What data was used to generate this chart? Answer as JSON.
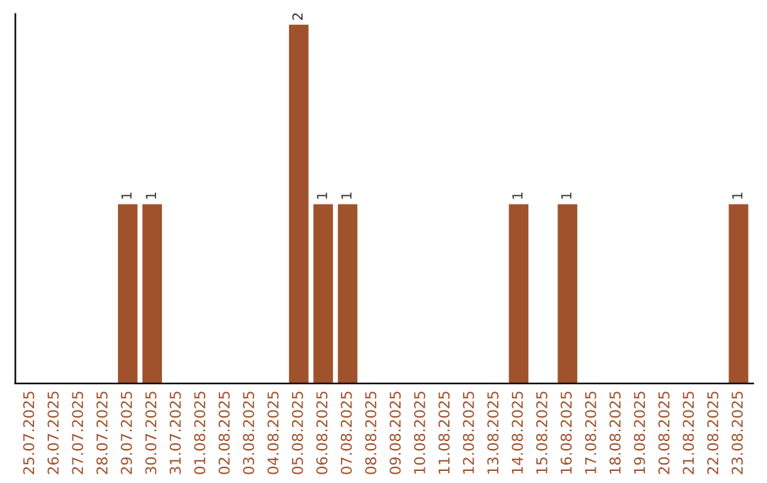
{
  "chart_data": {
    "type": "bar",
    "categories": [
      "25.07.2025",
      "26.07.2025",
      "27.07.2025",
      "28.07.2025",
      "29.07.2025",
      "30.07.2025",
      "31.07.2025",
      "01.08.2025",
      "02.08.2025",
      "03.08.2025",
      "04.08.2025",
      "05.08.2025",
      "06.08.2025",
      "07.08.2025",
      "08.08.2025",
      "09.08.2025",
      "10.08.2025",
      "11.08.2025",
      "12.08.2025",
      "13.08.2025",
      "14.08.2025",
      "15.08.2025",
      "16.08.2025",
      "17.08.2025",
      "18.08.2025",
      "19.08.2025",
      "20.08.2025",
      "21.08.2025",
      "22.08.2025",
      "23.08.2025"
    ],
    "values": [
      0,
      0,
      0,
      0,
      1,
      1,
      0,
      0,
      0,
      0,
      0,
      2,
      1,
      1,
      0,
      0,
      0,
      0,
      0,
      0,
      1,
      0,
      1,
      0,
      0,
      0,
      0,
      0,
      0,
      1
    ],
    "value_labels": [
      null,
      null,
      null,
      null,
      "1",
      "1",
      null,
      null,
      null,
      null,
      null,
      "2",
      "1",
      "1",
      null,
      null,
      null,
      null,
      null,
      null,
      "1",
      null,
      "1",
      null,
      null,
      null,
      null,
      null,
      null,
      "1"
    ],
    "color": "#a0522d",
    "grid": false,
    "legend": false
  }
}
